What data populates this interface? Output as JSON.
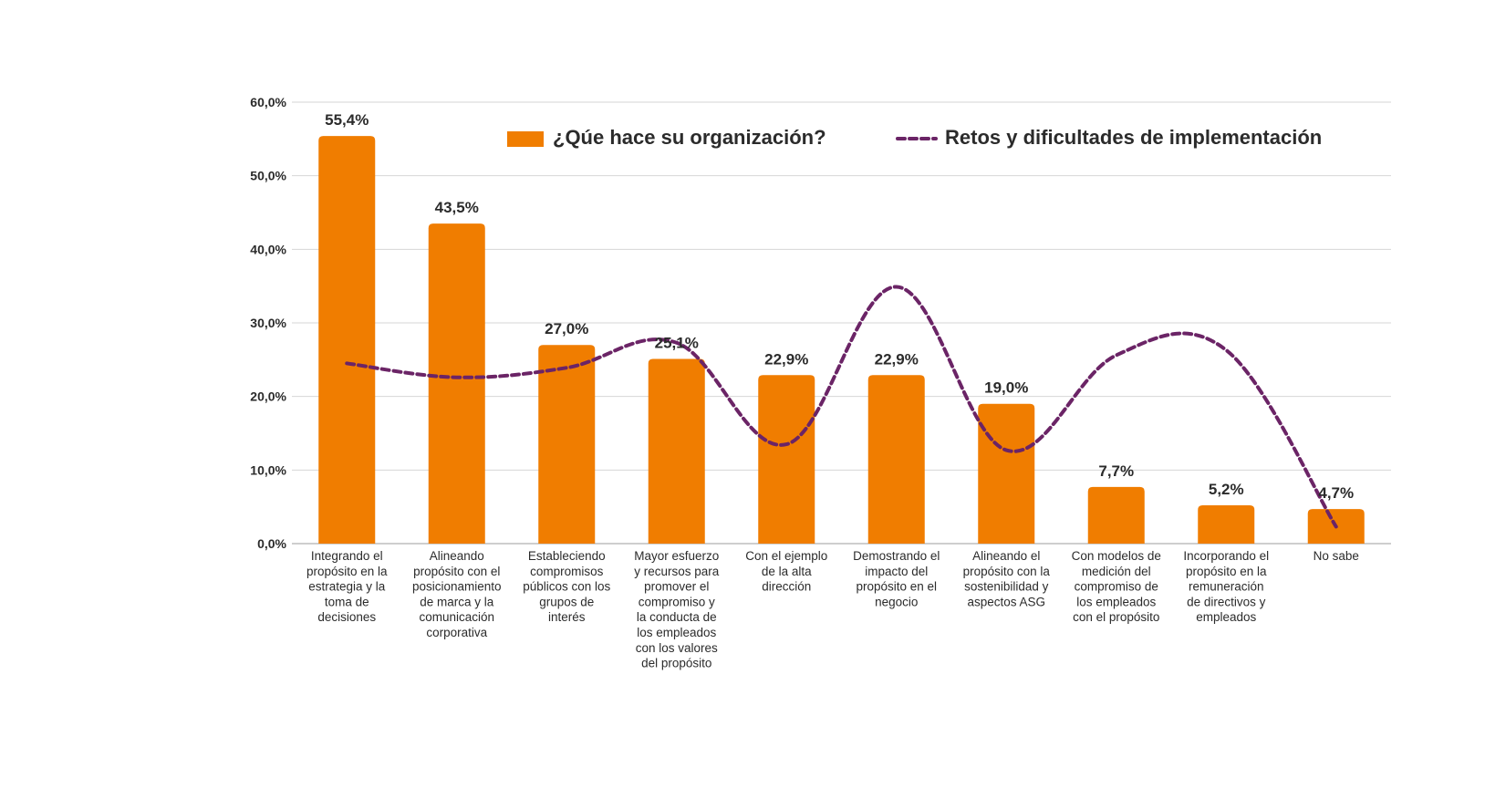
{
  "chart_data": {
    "type": "bar",
    "categories": [
      [
        "Integrando el",
        "propósito en la",
        "estrategia y la",
        "toma de",
        "decisiones"
      ],
      [
        "Alineando",
        "propósito con el",
        "posicionamiento",
        "de marca y la",
        "comunicación",
        "corporativa"
      ],
      [
        "Estableciendo",
        "compromisos",
        "públicos con los",
        "grupos de",
        "interés"
      ],
      [
        "Mayor esfuerzo",
        "y recursos para",
        "promover el",
        "compromiso y",
        "la conducta de",
        "los empleados",
        "con los valores",
        "del propósito"
      ],
      [
        "Con el ejemplo",
        "de la alta",
        "dirección"
      ],
      [
        "Demostrando el",
        "impacto del",
        "propósito en el",
        "negocio"
      ],
      [
        "Alineando el",
        "propósito con la",
        "sostenibilidad y",
        "aspectos ASG"
      ],
      [
        "Con modelos de",
        "medición del",
        "compromiso de",
        "los empleados",
        "con el propósito"
      ],
      [
        "Incorporando el",
        "propósito en la",
        "remuneración",
        "de directivos y",
        "empleados"
      ],
      [
        "No sabe"
      ]
    ],
    "series": [
      {
        "name": "¿Qúe hace su organización?",
        "kind": "bar",
        "color": "#F07D00",
        "values": [
          55.4,
          43.5,
          27.0,
          25.1,
          22.9,
          22.9,
          19.0,
          7.7,
          5.2,
          4.7
        ],
        "labels": [
          "55,4%",
          "43,5%",
          "27,0%",
          "25,1%",
          "22,9%",
          "22,9%",
          "19,0%",
          "7,7%",
          "5,2%",
          "4,7%"
        ]
      },
      {
        "name": "Retos y dificultades de implementación",
        "kind": "line",
        "style": "dashed",
        "color": "#6B2466",
        "values": [
          24.5,
          22.6,
          23.9,
          27.3,
          13.5,
          34.9,
          12.7,
          25.6,
          26.3,
          2.3
        ]
      }
    ],
    "yticks": [
      "60,0%",
      "50,0%",
      "40,0%",
      "30,0%",
      "20,0%",
      "10,0%",
      "0,0%"
    ],
    "ylim": [
      0,
      60
    ],
    "grid": true,
    "legend_position": "top-right"
  }
}
